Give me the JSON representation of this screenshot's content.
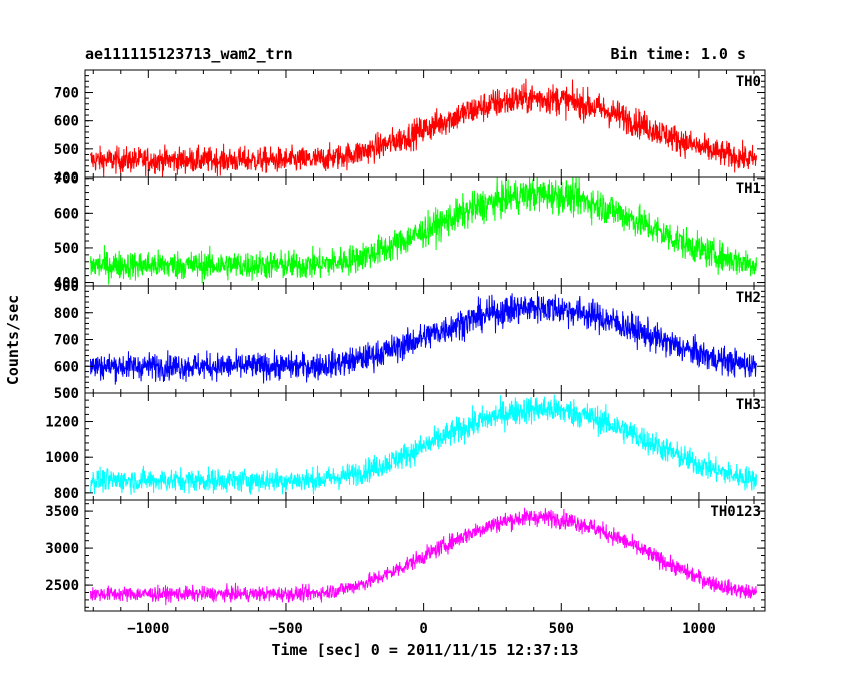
{
  "header": {
    "left_title": "ae111115123713_wam2_trn",
    "right_title": "Bin time: 1.0 s"
  },
  "chart_data": {
    "type": "line",
    "xlabel": "Time [sec] 0 = 2011/11/15 12:37:13",
    "ylabel": "Counts/sec",
    "xlim": [
      -1230,
      1240
    ],
    "x_ticks": [
      -1000,
      -500,
      0,
      500,
      1000
    ],
    "x_tick_labels": [
      "−1000",
      "−500",
      "0",
      "500",
      "1000"
    ],
    "x_range_data": [
      -1210,
      1210
    ],
    "bin_time_s": 1.0,
    "panels": [
      {
        "name": "TH0",
        "color": "#ff0000",
        "ylim": [
          400,
          780
        ],
        "y_ticks": [
          400,
          500,
          600,
          700
        ],
        "baseline": 460,
        "peak": 680,
        "peak_x": 420,
        "noise": 38
      },
      {
        "name": "TH1",
        "color": "#00ff00",
        "ylim": [
          390,
          705
        ],
        "y_ticks": [
          400,
          500,
          600,
          700
        ],
        "baseline": 450,
        "peak": 655,
        "peak_x": 430,
        "noise": 35
      },
      {
        "name": "TH2",
        "color": "#0000ff",
        "ylim": [
          500,
          900
        ],
        "y_ticks": [
          500,
          600,
          700,
          800,
          900
        ],
        "baseline": 600,
        "peak": 820,
        "peak_x": 420,
        "noise": 42
      },
      {
        "name": "TH3",
        "color": "#00ffff",
        "ylim": [
          760,
          1360
        ],
        "y_ticks": [
          800,
          1000,
          1200
        ],
        "baseline": 870,
        "peak": 1270,
        "peak_x": 430,
        "noise": 55
      },
      {
        "name": "TH0123",
        "color": "#ff00ff",
        "ylim": [
          2150,
          3650
        ],
        "y_ticks": [
          2500,
          3000,
          3500
        ],
        "baseline": 2380,
        "peak": 3420,
        "peak_x": 420,
        "noise": 85
      }
    ]
  }
}
